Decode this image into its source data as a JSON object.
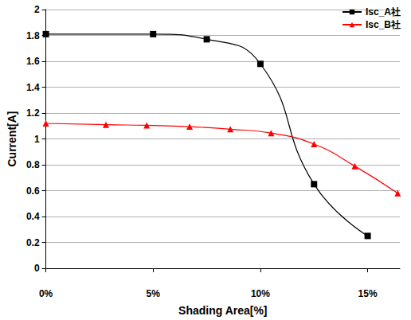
{
  "chart_data": {
    "type": "line",
    "x_label": "Shading Area[%]",
    "y_label": "Current[A]",
    "xlim": [
      0,
      16.5
    ],
    "xticks": [
      {
        "value": 0,
        "label": "0%"
      },
      {
        "value": 5,
        "label": "5%"
      },
      {
        "value": 10,
        "label": "10%"
      },
      {
        "value": 15,
        "label": "15%"
      }
    ],
    "ylim": [
      0,
      2
    ],
    "yticks": [
      0,
      0.2,
      0.4,
      0.6,
      0.8,
      1,
      1.2,
      1.4,
      1.6,
      1.8,
      2
    ],
    "grid": true,
    "legend": "upper right",
    "series": [
      {
        "name": "Isc_A社",
        "color": "#000000",
        "marker": "square",
        "line_style": "solid",
        "x": [
          0,
          5,
          7.5,
          10,
          12.5,
          15
        ],
        "values": [
          1.81,
          1.81,
          1.77,
          1.58,
          0.65,
          0.25
        ]
      },
      {
        "name": "Isc_B社",
        "color": "#ff0000",
        "marker": "triangle",
        "line_style": "solid",
        "x": [
          0,
          2.8,
          4.7,
          6.7,
          8.6,
          10.5,
          12.5,
          14.4,
          16.4
        ],
        "values": [
          1.12,
          1.11,
          1.105,
          1.095,
          1.075,
          1.045,
          0.96,
          0.79,
          0.58
        ]
      }
    ]
  }
}
